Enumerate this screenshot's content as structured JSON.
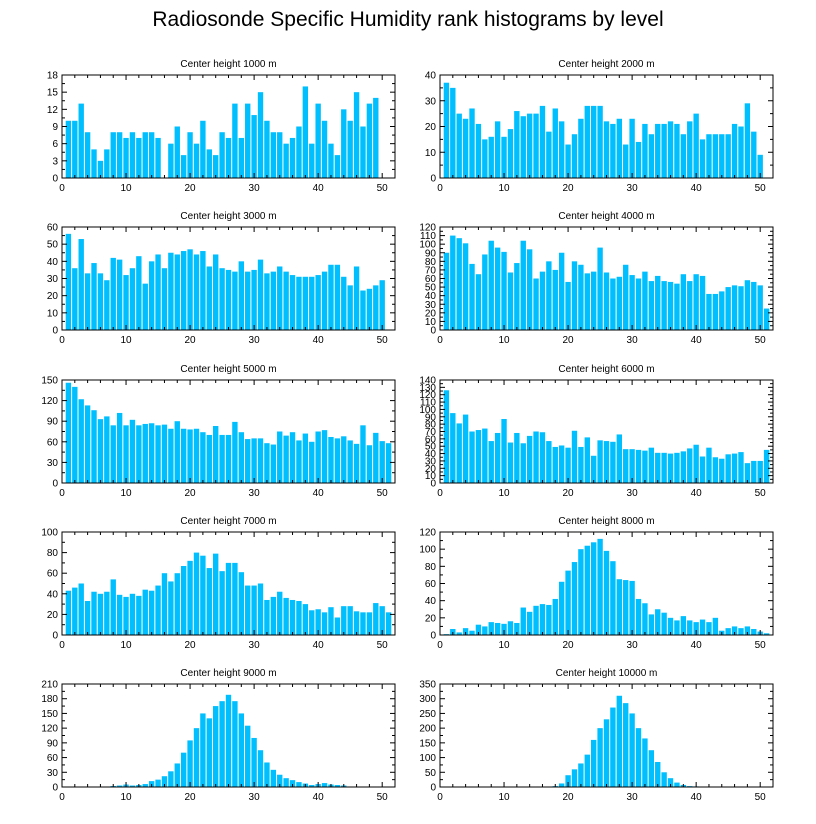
{
  "title": "Radiosonde Specific Humidity rank histograms by level",
  "colors": {
    "bar": "#00BFFF",
    "frame": "#000000"
  },
  "chart_data": [
    {
      "type": "bar",
      "title": "Center height 1000 m",
      "xlim": [
        0,
        52
      ],
      "xticks": [
        0,
        10,
        20,
        30,
        40,
        50
      ],
      "ylim": [
        0,
        18
      ],
      "yticks": [
        0,
        3,
        6,
        9,
        12,
        15,
        18
      ],
      "x": [
        1,
        2,
        3,
        4,
        5,
        6,
        7,
        8,
        9,
        10,
        11,
        12,
        13,
        14,
        15,
        16,
        17,
        18,
        19,
        20,
        21,
        22,
        23,
        24,
        25,
        26,
        27,
        28,
        29,
        30,
        31,
        32,
        33,
        34,
        35,
        36,
        37,
        38,
        39,
        40,
        41,
        42,
        43,
        44,
        45,
        46,
        47,
        48,
        49,
        50,
        51
      ],
      "values": [
        10,
        10,
        13,
        8,
        5,
        3,
        5,
        8,
        8,
        7,
        8,
        7,
        8,
        8,
        7,
        0,
        6,
        9,
        4,
        8,
        6,
        10,
        5,
        4,
        8,
        7,
        13,
        7,
        13,
        11,
        15,
        10,
        8,
        8,
        6,
        7,
        9,
        16,
        6,
        13,
        10,
        6,
        4,
        12,
        10,
        15,
        9,
        13,
        14,
        0,
        0
      ]
    },
    {
      "type": "bar",
      "title": "Center height 2000 m",
      "xlim": [
        0,
        52
      ],
      "xticks": [
        0,
        10,
        20,
        30,
        40,
        50
      ],
      "ylim": [
        0,
        40
      ],
      "yticks": [
        0,
        10,
        20,
        30,
        40
      ],
      "x": [
        1,
        2,
        3,
        4,
        5,
        6,
        7,
        8,
        9,
        10,
        11,
        12,
        13,
        14,
        15,
        16,
        17,
        18,
        19,
        20,
        21,
        22,
        23,
        24,
        25,
        26,
        27,
        28,
        29,
        30,
        31,
        32,
        33,
        34,
        35,
        36,
        37,
        38,
        39,
        40,
        41,
        42,
        43,
        44,
        45,
        46,
        47,
        48,
        49,
        50,
        51
      ],
      "values": [
        37,
        35,
        25,
        23,
        27,
        21,
        15,
        16,
        22,
        16,
        19,
        26,
        24,
        25,
        25,
        28,
        18,
        27,
        22,
        13,
        17,
        23,
        28,
        28,
        28,
        22,
        21,
        23,
        13,
        23,
        14,
        21,
        17,
        21,
        21,
        22,
        21,
        17,
        22,
        25,
        15,
        17,
        17,
        17,
        17,
        21,
        20,
        29,
        18,
        9,
        0
      ]
    },
    {
      "type": "bar",
      "title": "Center height 3000 m",
      "xlim": [
        0,
        52
      ],
      "xticks": [
        0,
        10,
        20,
        30,
        40,
        50
      ],
      "ylim": [
        0,
        60
      ],
      "yticks": [
        0,
        10,
        20,
        30,
        40,
        50,
        60
      ],
      "x": [
        1,
        2,
        3,
        4,
        5,
        6,
        7,
        8,
        9,
        10,
        11,
        12,
        13,
        14,
        15,
        16,
        17,
        18,
        19,
        20,
        21,
        22,
        23,
        24,
        25,
        26,
        27,
        28,
        29,
        30,
        31,
        32,
        33,
        34,
        35,
        36,
        37,
        38,
        39,
        40,
        41,
        42,
        43,
        44,
        45,
        46,
        47,
        48,
        49,
        50,
        51
      ],
      "values": [
        56,
        36,
        53,
        33,
        39,
        33,
        29,
        42,
        41,
        32,
        36,
        43,
        27,
        40,
        44,
        36,
        45,
        44,
        46,
        47,
        44,
        46,
        37,
        44,
        36,
        35,
        34,
        40,
        34,
        35,
        41,
        33,
        34,
        37,
        34,
        32,
        31,
        31,
        31,
        32,
        34,
        38,
        38,
        31,
        26,
        37,
        23,
        24,
        26,
        29,
        0
      ]
    },
    {
      "type": "bar",
      "title": "Center height 4000 m",
      "xlim": [
        0,
        52
      ],
      "xticks": [
        0,
        10,
        20,
        30,
        40,
        50
      ],
      "ylim": [
        0,
        120
      ],
      "yticks": [
        0,
        10,
        20,
        30,
        40,
        50,
        60,
        70,
        80,
        90,
        100,
        110,
        120
      ],
      "x": [
        1,
        2,
        3,
        4,
        5,
        6,
        7,
        8,
        9,
        10,
        11,
        12,
        13,
        14,
        15,
        16,
        17,
        18,
        19,
        20,
        21,
        22,
        23,
        24,
        25,
        26,
        27,
        28,
        29,
        30,
        31,
        32,
        33,
        34,
        35,
        36,
        37,
        38,
        39,
        40,
        41,
        42,
        43,
        44,
        45,
        46,
        47,
        48,
        49,
        50,
        51
      ],
      "values": [
        90,
        110,
        107,
        101,
        77,
        65,
        88,
        104,
        96,
        91,
        67,
        78,
        104,
        94,
        60,
        68,
        80,
        70,
        90,
        56,
        80,
        76,
        66,
        68,
        96,
        67,
        60,
        62,
        76,
        64,
        60,
        68,
        57,
        63,
        57,
        56,
        54,
        65,
        57,
        65,
        63,
        42,
        42,
        45,
        50,
        52,
        51,
        58,
        56,
        52,
        25
      ]
    },
    {
      "type": "bar",
      "title": "Center height 5000 m",
      "xlim": [
        0,
        52
      ],
      "xticks": [
        0,
        10,
        20,
        30,
        40,
        50
      ],
      "ylim": [
        0,
        150
      ],
      "yticks": [
        0,
        30,
        60,
        90,
        120,
        150
      ],
      "x": [
        1,
        2,
        3,
        4,
        5,
        6,
        7,
        8,
        9,
        10,
        11,
        12,
        13,
        14,
        15,
        16,
        17,
        18,
        19,
        20,
        21,
        22,
        23,
        24,
        25,
        26,
        27,
        28,
        29,
        30,
        31,
        32,
        33,
        34,
        35,
        36,
        37,
        38,
        39,
        40,
        41,
        42,
        43,
        44,
        45,
        46,
        47,
        48,
        49,
        50,
        51
      ],
      "values": [
        146,
        140,
        122,
        113,
        106,
        93,
        97,
        84,
        102,
        84,
        92,
        84,
        86,
        87,
        84,
        85,
        79,
        90,
        79,
        78,
        79,
        74,
        70,
        83,
        70,
        70,
        89,
        74,
        64,
        65,
        65,
        58,
        56,
        75,
        69,
        74,
        62,
        72,
        60,
        75,
        77,
        67,
        65,
        68,
        62,
        57,
        84,
        55,
        73,
        61,
        58
      ]
    },
    {
      "type": "bar",
      "title": "Center height 6000 m",
      "xlim": [
        0,
        52
      ],
      "xticks": [
        0,
        10,
        20,
        30,
        40,
        50
      ],
      "ylim": [
        0,
        140
      ],
      "yticks": [
        0,
        10,
        20,
        30,
        40,
        50,
        60,
        70,
        80,
        90,
        100,
        110,
        120,
        130,
        140
      ],
      "x": [
        1,
        2,
        3,
        4,
        5,
        6,
        7,
        8,
        9,
        10,
        11,
        12,
        13,
        14,
        15,
        16,
        17,
        18,
        19,
        20,
        21,
        22,
        23,
        24,
        25,
        26,
        27,
        28,
        29,
        30,
        31,
        32,
        33,
        34,
        35,
        36,
        37,
        38,
        39,
        40,
        41,
        42,
        43,
        44,
        45,
        46,
        47,
        48,
        49,
        50,
        51
      ],
      "values": [
        126,
        95,
        81,
        93,
        70,
        72,
        74,
        57,
        68,
        87,
        55,
        68,
        54,
        64,
        70,
        69,
        57,
        49,
        51,
        48,
        71,
        49,
        62,
        37,
        58,
        57,
        56,
        66,
        46,
        46,
        45,
        44,
        48,
        41,
        41,
        40,
        41,
        43,
        47,
        52,
        36,
        48,
        35,
        33,
        39,
        40,
        42,
        27,
        30,
        30,
        45
      ]
    },
    {
      "type": "bar",
      "title": "Center height 7000 m",
      "xlim": [
        0,
        52
      ],
      "xticks": [
        0,
        10,
        20,
        30,
        40,
        50
      ],
      "ylim": [
        0,
        100
      ],
      "yticks": [
        0,
        20,
        40,
        60,
        80,
        100
      ],
      "x": [
        1,
        2,
        3,
        4,
        5,
        6,
        7,
        8,
        9,
        10,
        11,
        12,
        13,
        14,
        15,
        16,
        17,
        18,
        19,
        20,
        21,
        22,
        23,
        24,
        25,
        26,
        27,
        28,
        29,
        30,
        31,
        32,
        33,
        34,
        35,
        36,
        37,
        38,
        39,
        40,
        41,
        42,
        43,
        44,
        45,
        46,
        47,
        48,
        49,
        50,
        51
      ],
      "values": [
        43,
        46,
        50,
        33,
        42,
        40,
        42,
        54,
        39,
        37,
        40,
        38,
        44,
        43,
        48,
        60,
        52,
        60,
        67,
        72,
        80,
        77,
        65,
        79,
        62,
        70,
        70,
        61,
        48,
        48,
        50,
        34,
        37,
        42,
        36,
        34,
        33,
        30,
        24,
        25,
        22,
        27,
        17,
        28,
        28,
        23,
        22,
        22,
        31,
        28,
        22
      ]
    },
    {
      "type": "bar",
      "title": "Center height 8000 m",
      "xlim": [
        0,
        52
      ],
      "xticks": [
        0,
        10,
        20,
        30,
        40,
        50
      ],
      "ylim": [
        0,
        120
      ],
      "yticks": [
        0,
        20,
        40,
        60,
        80,
        100,
        120
      ],
      "x": [
        1,
        2,
        3,
        4,
        5,
        6,
        7,
        8,
        9,
        10,
        11,
        12,
        13,
        14,
        15,
        16,
        17,
        18,
        19,
        20,
        21,
        22,
        23,
        24,
        25,
        26,
        27,
        28,
        29,
        30,
        31,
        32,
        33,
        34,
        35,
        36,
        37,
        38,
        39,
        40,
        41,
        42,
        43,
        44,
        45,
        46,
        47,
        48,
        49,
        50,
        51
      ],
      "values": [
        1,
        7,
        3,
        8,
        5,
        12,
        10,
        15,
        14,
        13,
        16,
        14,
        32,
        27,
        34,
        36,
        35,
        42,
        62,
        75,
        85,
        100,
        104,
        108,
        112,
        98,
        86,
        65,
        64,
        63,
        42,
        37,
        24,
        30,
        26,
        20,
        17,
        22,
        17,
        15,
        18,
        15,
        20,
        5,
        8,
        10,
        8,
        10,
        7,
        4,
        2
      ]
    },
    {
      "type": "bar",
      "title": "Center height 9000 m",
      "xlim": [
        0,
        52
      ],
      "xticks": [
        0,
        10,
        20,
        30,
        40,
        50
      ],
      "ylim": [
        0,
        210
      ],
      "yticks": [
        0,
        30,
        60,
        90,
        120,
        150,
        180,
        210
      ],
      "x": [
        1,
        2,
        3,
        4,
        5,
        6,
        7,
        8,
        9,
        10,
        11,
        12,
        13,
        14,
        15,
        16,
        17,
        18,
        19,
        20,
        21,
        22,
        23,
        24,
        25,
        26,
        27,
        28,
        29,
        30,
        31,
        32,
        33,
        34,
        35,
        36,
        37,
        38,
        39,
        40,
        41,
        42,
        43,
        44,
        45,
        46,
        47,
        48,
        49,
        50,
        51
      ],
      "values": [
        0,
        0,
        0,
        0,
        0,
        1,
        1,
        2,
        3,
        5,
        3,
        4,
        6,
        12,
        15,
        22,
        32,
        48,
        70,
        95,
        120,
        150,
        140,
        165,
        175,
        188,
        175,
        150,
        125,
        100,
        75,
        50,
        35,
        25,
        18,
        14,
        10,
        7,
        4,
        6,
        8,
        5,
        4,
        3,
        1,
        1,
        0,
        0,
        0,
        0,
        0
      ]
    },
    {
      "type": "bar",
      "title": "Center height 10000 m",
      "xlim": [
        0,
        52
      ],
      "xticks": [
        0,
        10,
        20,
        30,
        40,
        50
      ],
      "ylim": [
        0,
        350
      ],
      "yticks": [
        0,
        50,
        100,
        150,
        200,
        250,
        300,
        350
      ],
      "x": [
        1,
        2,
        3,
        4,
        5,
        6,
        7,
        8,
        9,
        10,
        11,
        12,
        13,
        14,
        15,
        16,
        17,
        18,
        19,
        20,
        21,
        22,
        23,
        24,
        25,
        26,
        27,
        28,
        29,
        30,
        31,
        32,
        33,
        34,
        35,
        36,
        37,
        38,
        39,
        40,
        41,
        42,
        43,
        44,
        45,
        46,
        47,
        48,
        49,
        50,
        51
      ],
      "values": [
        0,
        0,
        0,
        0,
        0,
        0,
        0,
        0,
        0,
        0,
        0,
        0,
        0,
        0,
        0,
        0,
        1,
        3,
        12,
        40,
        60,
        80,
        110,
        160,
        200,
        230,
        270,
        310,
        285,
        250,
        200,
        165,
        125,
        85,
        50,
        30,
        15,
        7,
        3,
        2,
        1,
        0,
        0,
        0,
        0,
        0,
        0,
        0,
        0,
        0,
        0
      ]
    }
  ]
}
